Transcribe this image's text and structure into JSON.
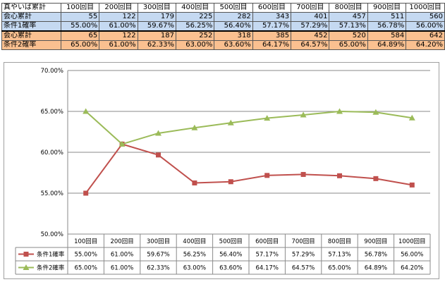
{
  "sheet": {
    "corner_label": "真やいば累計",
    "columns": [
      "100回目",
      "200回目",
      "300回目",
      "400回目",
      "500回目",
      "600回目",
      "700回目",
      "800回目",
      "900回目",
      "1000回目"
    ],
    "rows": [
      {
        "label": "会心累計",
        "values": [
          "55",
          "122",
          "179",
          "225",
          "282",
          "343",
          "401",
          "457",
          "511",
          "560"
        ],
        "style": "blue"
      },
      {
        "label": "条件1確率",
        "values": [
          "55.00%",
          "61.00%",
          "59.67%",
          "56.25%",
          "56.40%",
          "57.17%",
          "57.29%",
          "57.13%",
          "56.78%",
          "56.00%"
        ],
        "style": "blue"
      },
      {
        "label": "会心累計",
        "values": [
          "65",
          "122",
          "187",
          "252",
          "318",
          "385",
          "452",
          "520",
          "584",
          "642"
        ],
        "style": "orange"
      },
      {
        "label": "条件2確率",
        "values": [
          "65.00%",
          "61.00%",
          "62.33%",
          "63.00%",
          "63.60%",
          "64.17%",
          "64.57%",
          "65.00%",
          "64.89%",
          "64.20%"
        ],
        "style": "orange"
      }
    ]
  },
  "chart_data": {
    "type": "line",
    "categories": [
      "100回目",
      "200回目",
      "300回目",
      "400回目",
      "500回目",
      "600回目",
      "700回目",
      "800回目",
      "900回目",
      "1000回目"
    ],
    "series": [
      {
        "name": "条件1確率",
        "color": "#c0504d",
        "marker": "square",
        "values": [
          55.0,
          61.0,
          59.67,
          56.25,
          56.4,
          57.17,
          57.29,
          57.13,
          56.78,
          56.0
        ],
        "labels": [
          "55.00%",
          "61.00%",
          "59.67%",
          "56.25%",
          "56.40%",
          "57.17%",
          "57.29%",
          "57.13%",
          "56.78%",
          "56.00%"
        ]
      },
      {
        "name": "条件2確率",
        "color": "#9bbb59",
        "marker": "triangle",
        "values": [
          65.0,
          61.0,
          62.33,
          63.0,
          63.6,
          64.17,
          64.57,
          65.0,
          64.89,
          64.2
        ],
        "labels": [
          "65.00%",
          "61.00%",
          "62.33%",
          "63.00%",
          "63.60%",
          "64.17%",
          "64.57%",
          "65.00%",
          "64.89%",
          "64.20%"
        ]
      }
    ],
    "ylim": [
      50,
      70
    ],
    "yticks": [
      "50.00%",
      "55.00%",
      "60.00%",
      "65.00%",
      "70.00%"
    ],
    "ytick_values": [
      50,
      55,
      60,
      65,
      70
    ],
    "grid": true,
    "legend": "data-table-bottom"
  }
}
